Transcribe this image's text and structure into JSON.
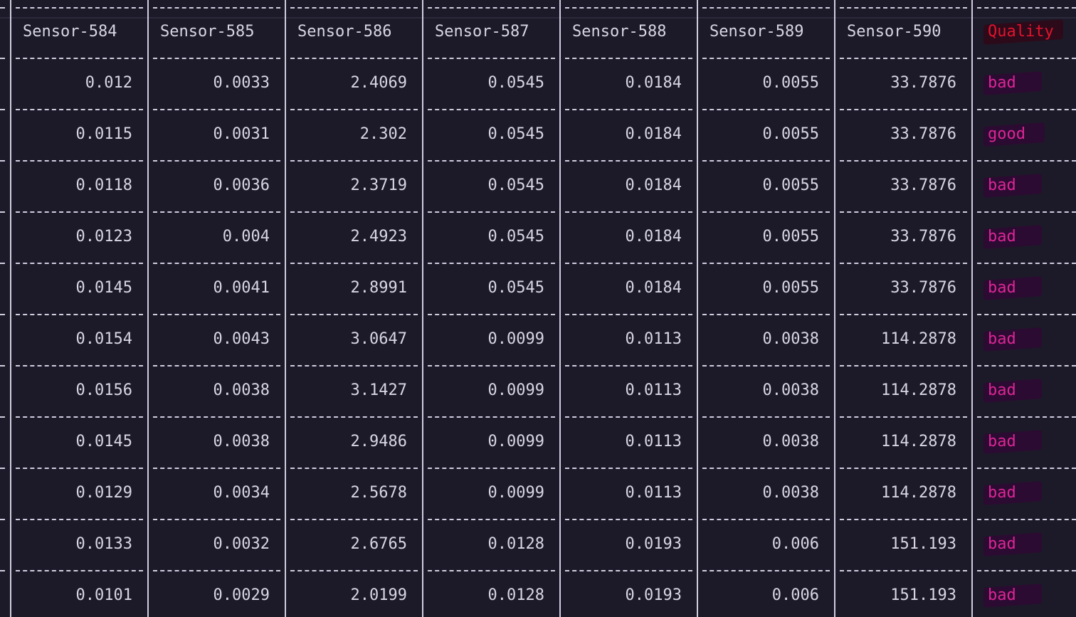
{
  "table": {
    "headers": [
      "Sensor-584",
      "Sensor-585",
      "Sensor-586",
      "Sensor-587",
      "Sensor-588",
      "Sensor-589",
      "Sensor-590",
      "Quality"
    ],
    "rows": [
      [
        "0.012",
        "0.0033",
        "2.4069",
        "0.0545",
        "0.0184",
        "0.0055",
        "33.7876",
        "bad"
      ],
      [
        "0.0115",
        "0.0031",
        "2.302",
        "0.0545",
        "0.0184",
        "0.0055",
        "33.7876",
        "good"
      ],
      [
        "0.0118",
        "0.0036",
        "2.3719",
        "0.0545",
        "0.0184",
        "0.0055",
        "33.7876",
        "bad"
      ],
      [
        "0.0123",
        "0.004",
        "2.4923",
        "0.0545",
        "0.0184",
        "0.0055",
        "33.7876",
        "bad"
      ],
      [
        "0.0145",
        "0.0041",
        "2.8991",
        "0.0545",
        "0.0184",
        "0.0055",
        "33.7876",
        "bad"
      ],
      [
        "0.0154",
        "0.0043",
        "3.0647",
        "0.0099",
        "0.0113",
        "0.0038",
        "114.2878",
        "bad"
      ],
      [
        "0.0156",
        "0.0038",
        "3.1427",
        "0.0099",
        "0.0113",
        "0.0038",
        "114.2878",
        "bad"
      ],
      [
        "0.0145",
        "0.0038",
        "2.9486",
        "0.0099",
        "0.0113",
        "0.0038",
        "114.2878",
        "bad"
      ],
      [
        "0.0129",
        "0.0034",
        "2.5678",
        "0.0099",
        "0.0113",
        "0.0038",
        "114.2878",
        "bad"
      ],
      [
        "0.0133",
        "0.0032",
        "2.6765",
        "0.0128",
        "0.0193",
        "0.006",
        "151.193",
        "bad"
      ],
      [
        "0.0101",
        "0.0029",
        "2.0199",
        "0.0128",
        "0.0193",
        "0.006",
        "151.193",
        "bad"
      ]
    ]
  },
  "colors": {
    "background": "#1c1a28",
    "text": "#d8d6e4",
    "quality_header": "#e0142c",
    "quality_value": "#dc2596"
  }
}
